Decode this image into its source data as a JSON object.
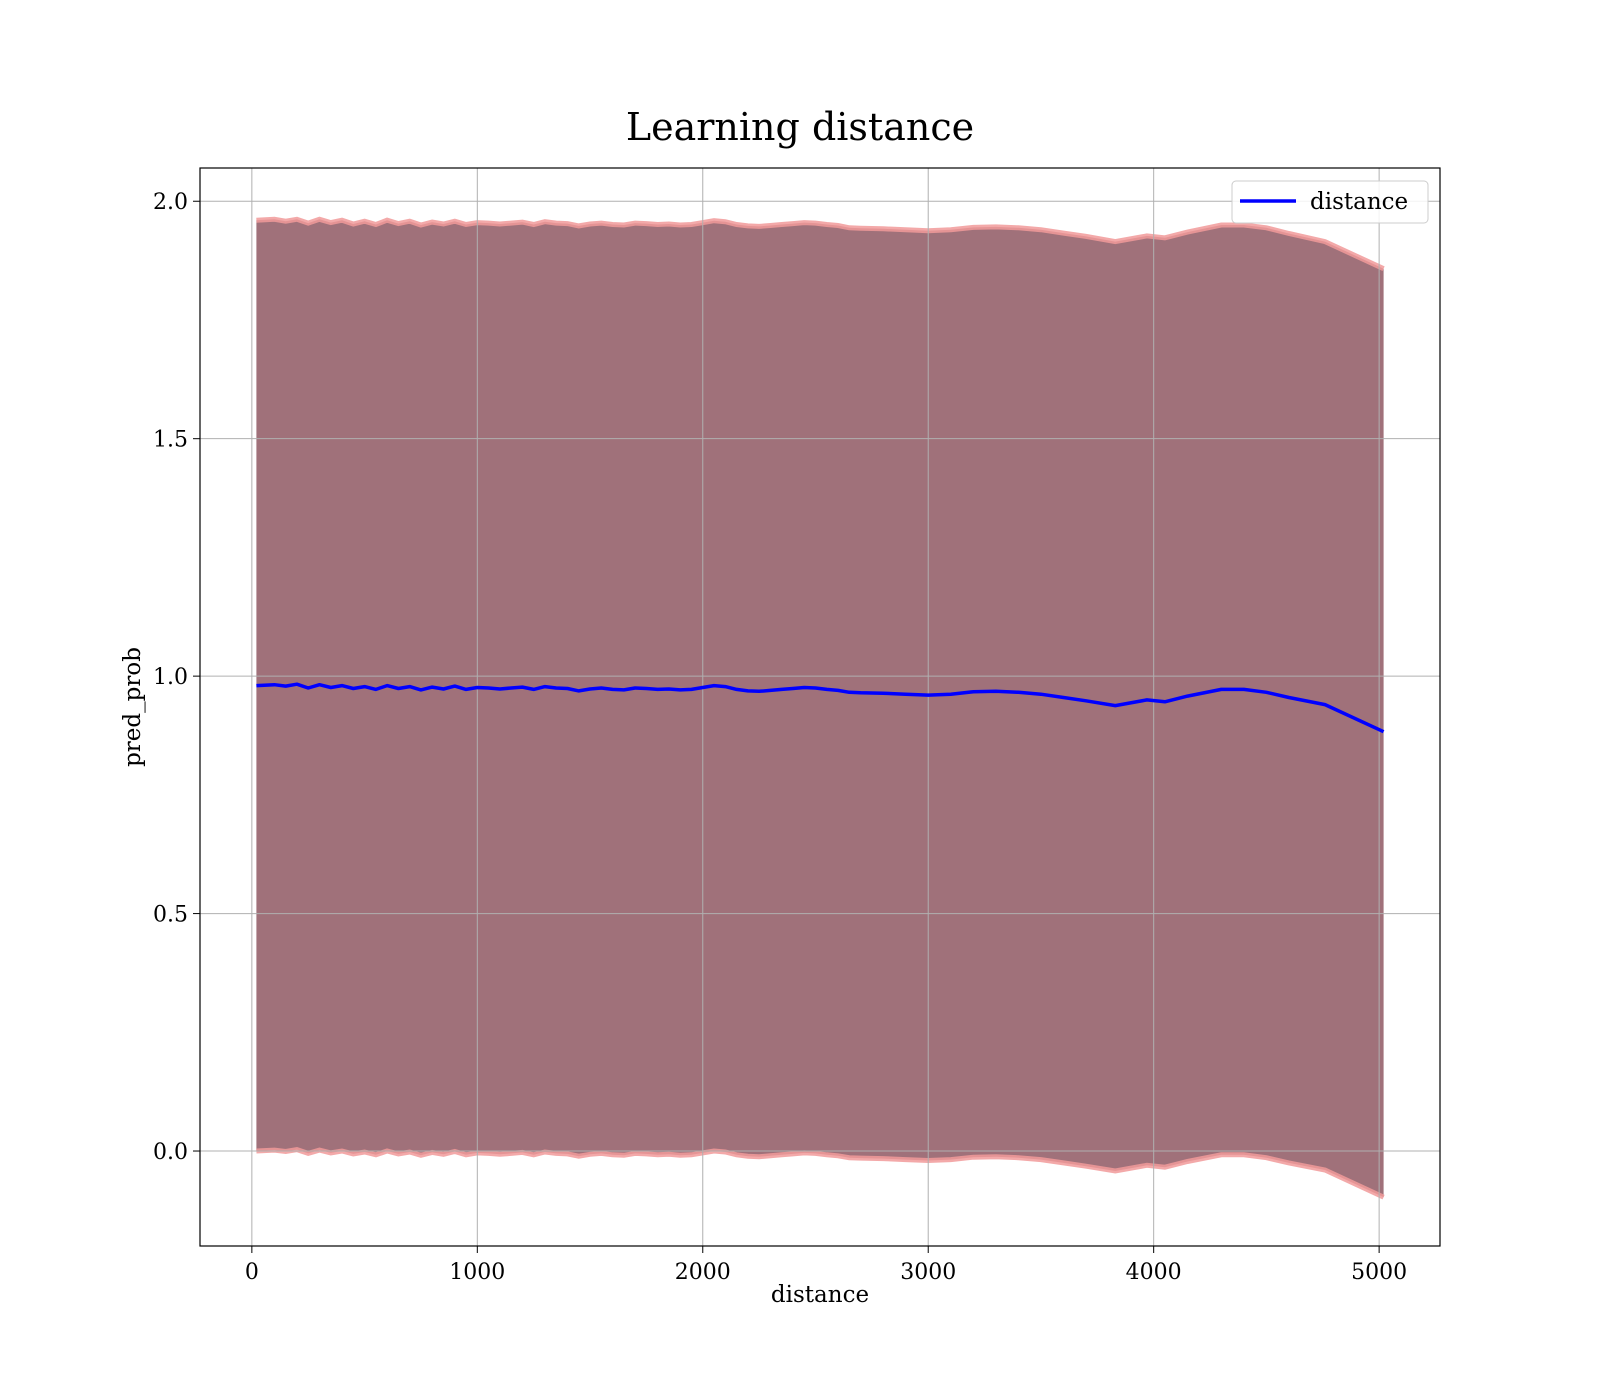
{
  "chart_data": {
    "type": "line",
    "title": "Learning distance",
    "xlabel": "distance",
    "ylabel": "pred_prob",
    "xlim": [
      -230,
      5270
    ],
    "ylim": [
      -0.2,
      2.07
    ],
    "xticks": [
      0,
      1000,
      2000,
      3000,
      4000,
      5000
    ],
    "xtick_labels": [
      "0",
      "1000",
      "2000",
      "3000",
      "4000",
      "5000"
    ],
    "yticks": [
      0.0,
      0.5,
      1.0,
      1.5,
      2.0
    ],
    "ytick_labels": [
      "0.0",
      "0.5",
      "1.0",
      "1.5",
      "2.0"
    ],
    "grid": true,
    "legend": {
      "placement": "top-right",
      "entries": [
        "distance"
      ]
    },
    "colors": {
      "line": "#0000ff",
      "band": "#a0717a",
      "band_edge": "#f19a9a"
    },
    "series": [
      {
        "name": "distance",
        "x": [
          20,
          100,
          150,
          200,
          250,
          300,
          350,
          400,
          450,
          500,
          550,
          600,
          650,
          700,
          750,
          800,
          850,
          900,
          950,
          1000,
          1050,
          1100,
          1150,
          1200,
          1250,
          1300,
          1350,
          1400,
          1450,
          1500,
          1550,
          1600,
          1650,
          1700,
          1750,
          1800,
          1850,
          1900,
          1950,
          2000,
          2050,
          2100,
          2150,
          2200,
          2250,
          2300,
          2350,
          2400,
          2450,
          2500,
          2550,
          2600,
          2650,
          2700,
          2800,
          2900,
          3000,
          3100,
          3200,
          3300,
          3400,
          3500,
          3600,
          3700,
          3830,
          3970,
          4050,
          4150,
          4300,
          4400,
          4500,
          4600,
          4760,
          5020
        ],
        "values": [
          0.98,
          0.982,
          0.979,
          0.983,
          0.975,
          0.982,
          0.976,
          0.98,
          0.974,
          0.978,
          0.972,
          0.98,
          0.974,
          0.978,
          0.971,
          0.977,
          0.973,
          0.979,
          0.972,
          0.976,
          0.975,
          0.973,
          0.975,
          0.977,
          0.972,
          0.978,
          0.975,
          0.974,
          0.969,
          0.973,
          0.975,
          0.972,
          0.971,
          0.975,
          0.974,
          0.972,
          0.973,
          0.971,
          0.972,
          0.976,
          0.98,
          0.978,
          0.972,
          0.969,
          0.968,
          0.97,
          0.972,
          0.974,
          0.976,
          0.975,
          0.972,
          0.97,
          0.966,
          0.965,
          0.964,
          0.962,
          0.96,
          0.962,
          0.967,
          0.968,
          0.966,
          0.962,
          0.955,
          0.948,
          0.938,
          0.95,
          0.946,
          0.958,
          0.972,
          0.972,
          0.966,
          0.955,
          0.94,
          0.883
        ],
        "upper": [
          1.96,
          1.962,
          1.958,
          1.962,
          1.954,
          1.962,
          1.955,
          1.96,
          1.952,
          1.958,
          1.951,
          1.96,
          1.953,
          1.958,
          1.95,
          1.956,
          1.952,
          1.958,
          1.951,
          1.955,
          1.954,
          1.952,
          1.954,
          1.956,
          1.951,
          1.957,
          1.954,
          1.953,
          1.948,
          1.952,
          1.954,
          1.951,
          1.95,
          1.954,
          1.953,
          1.951,
          1.952,
          1.95,
          1.951,
          1.955,
          1.959,
          1.957,
          1.951,
          1.948,
          1.947,
          1.949,
          1.951,
          1.953,
          1.955,
          1.954,
          1.951,
          1.949,
          1.944,
          1.943,
          1.942,
          1.94,
          1.938,
          1.94,
          1.945,
          1.946,
          1.944,
          1.94,
          1.933,
          1.926,
          1.915,
          1.927,
          1.923,
          1.935,
          1.95,
          1.95,
          1.944,
          1.932,
          1.915,
          1.858
        ],
        "lower": [
          0.0,
          0.002,
          -0.001,
          0.003,
          -0.005,
          0.002,
          -0.004,
          0.0,
          -0.006,
          -0.002,
          -0.008,
          0.0,
          -0.006,
          -0.002,
          -0.009,
          -0.003,
          -0.007,
          -0.001,
          -0.008,
          -0.004,
          -0.005,
          -0.007,
          -0.005,
          -0.003,
          -0.008,
          -0.002,
          -0.005,
          -0.006,
          -0.011,
          -0.007,
          -0.005,
          -0.008,
          -0.009,
          -0.005,
          -0.006,
          -0.008,
          -0.007,
          -0.009,
          -0.008,
          -0.004,
          0.0,
          -0.002,
          -0.008,
          -0.011,
          -0.012,
          -0.01,
          -0.008,
          -0.006,
          -0.004,
          -0.005,
          -0.008,
          -0.01,
          -0.014,
          -0.015,
          -0.016,
          -0.018,
          -0.02,
          -0.018,
          -0.013,
          -0.012,
          -0.014,
          -0.018,
          -0.025,
          -0.032,
          -0.042,
          -0.03,
          -0.034,
          -0.022,
          -0.008,
          -0.008,
          -0.014,
          -0.025,
          -0.04,
          -0.097
        ]
      }
    ]
  }
}
